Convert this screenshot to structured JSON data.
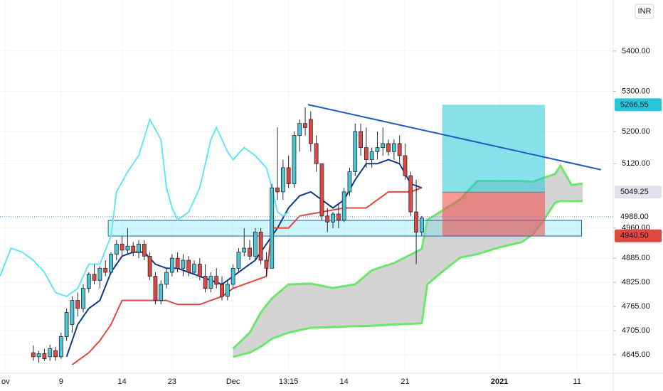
{
  "chart_data": {
    "type": "candlestick",
    "currency": "INR",
    "xlim": [
      -6,
      104.5
    ],
    "ylim": [
      4599,
      5527
    ],
    "grid": true,
    "xticks": [
      {
        "value": -5,
        "label": "ov"
      },
      {
        "value": 5,
        "label": "9"
      },
      {
        "value": 16,
        "label": "14"
      },
      {
        "value": 25,
        "label": "23"
      },
      {
        "value": 36,
        "label": "Dec"
      },
      {
        "value": 46,
        "label": "13:15"
      },
      {
        "value": 56,
        "label": "14"
      },
      {
        "value": 67,
        "label": "21"
      },
      {
        "value": 84,
        "label": "2021"
      },
      {
        "value": 98,
        "label": "11"
      }
    ],
    "yticks": [
      {
        "value": 5400,
        "label": "5400.00"
      },
      {
        "value": 5300,
        "label": "5300.00"
      },
      {
        "value": 5200,
        "label": "5200.00"
      },
      {
        "value": 5120,
        "label": "5120.00"
      },
      {
        "value": 4960,
        "label": "4960.00"
      },
      {
        "value": 4885,
        "label": "4885.00"
      },
      {
        "value": 4825,
        "label": "4825.00"
      },
      {
        "value": 4765,
        "label": "4765.00"
      },
      {
        "value": 4705,
        "label": "4705.00"
      },
      {
        "value": 4645,
        "label": "4645.00"
      }
    ],
    "up_color": "#4fc3d0",
    "down_color": "#e2473f",
    "x": [
      0,
      1,
      2,
      3,
      4,
      5,
      6,
      7,
      8,
      9,
      10,
      11,
      12,
      13,
      14,
      15,
      16,
      17,
      18,
      19,
      20,
      21,
      22,
      23,
      24,
      25,
      26,
      27,
      28,
      29,
      30,
      31,
      32,
      33,
      34,
      35,
      36,
      37,
      38,
      39,
      40,
      41,
      42,
      43,
      44,
      45,
      46,
      47,
      48,
      49,
      50,
      51,
      52,
      53,
      54,
      55,
      56,
      57,
      58,
      59,
      60,
      61,
      62,
      63,
      64,
      65,
      66,
      67,
      68,
      69,
      70
    ],
    "candles": [
      [
        4650,
        4668,
        4630,
        4640
      ],
      [
        4640,
        4655,
        4625,
        4648
      ],
      [
        4648,
        4660,
        4630,
        4635
      ],
      [
        4640,
        4670,
        4630,
        4660
      ],
      [
        4655,
        4665,
        4630,
        4640
      ],
      [
        4640,
        4700,
        4635,
        4690
      ],
      [
        4690,
        4760,
        4680,
        4750
      ],
      [
        4720,
        4790,
        4700,
        4780
      ],
      [
        4780,
        4800,
        4740,
        4760
      ],
      [
        4760,
        4820,
        4750,
        4810
      ],
      [
        4810,
        4850,
        4800,
        4845
      ],
      [
        4845,
        4870,
        4820,
        4830
      ],
      [
        4830,
        4865,
        4810,
        4860
      ],
      [
        4860,
        4880,
        4840,
        4850
      ],
      [
        4850,
        4900,
        4845,
        4895
      ],
      [
        4895,
        4930,
        4880,
        4920
      ],
      [
        4920,
        4940,
        4890,
        4905
      ],
      [
        4905,
        4960,
        4895,
        4915
      ],
      [
        4915,
        4925,
        4890,
        4900
      ],
      [
        4900,
        4930,
        4885,
        4920
      ],
      [
        4920,
        4930,
        4880,
        4890
      ],
      [
        4890,
        4900,
        4830,
        4840
      ],
      [
        4840,
        4850,
        4770,
        4780
      ],
      [
        4780,
        4830,
        4770,
        4820
      ],
      [
        4820,
        4860,
        4810,
        4850
      ],
      [
        4850,
        4895,
        4840,
        4885
      ],
      [
        4885,
        4900,
        4850,
        4860
      ],
      [
        4860,
        4895,
        4840,
        4880
      ],
      [
        4880,
        4890,
        4840,
        4850
      ],
      [
        4850,
        4880,
        4845,
        4870
      ],
      [
        4870,
        4885,
        4830,
        4840
      ],
      [
        4840,
        4870,
        4800,
        4810
      ],
      [
        4810,
        4850,
        4800,
        4840
      ],
      [
        4840,
        4860,
        4810,
        4820
      ],
      [
        4820,
        4840,
        4780,
        4790
      ],
      [
        4790,
        4830,
        4780,
        4820
      ],
      [
        4820,
        4870,
        4810,
        4860
      ],
      [
        4860,
        4910,
        4850,
        4900
      ],
      [
        4900,
        4960,
        4890,
        4910
      ],
      [
        4910,
        4930,
        4880,
        4890
      ],
      [
        4890,
        4960,
        4880,
        4950
      ],
      [
        4950,
        4960,
        4870,
        4880
      ],
      [
        4880,
        4900,
        4840,
        4860
      ],
      [
        4860,
        5070,
        4860,
        5060
      ],
      [
        5060,
        5210,
        5030,
        5050
      ],
      [
        5050,
        5130,
        5030,
        5110
      ],
      [
        5110,
        5140,
        5060,
        5070
      ],
      [
        5070,
        5200,
        5060,
        5190
      ],
      [
        5190,
        5230,
        5150,
        5220
      ],
      [
        5220,
        5260,
        5190,
        5210
      ],
      [
        5230,
        5250,
        5150,
        5170
      ],
      [
        5170,
        5190,
        5100,
        5120
      ],
      [
        5120,
        5120,
        4980,
        4990
      ],
      [
        4990,
        5010,
        4950,
        4975
      ],
      [
        4975,
        5000,
        4960,
        4995
      ],
      [
        4995,
        5020,
        4960,
        4980
      ],
      [
        4980,
        5060,
        4975,
        5050
      ],
      [
        5050,
        5110,
        5040,
        5100
      ],
      [
        5100,
        5220,
        5090,
        5200
      ],
      [
        5200,
        5220,
        5140,
        5160
      ],
      [
        5160,
        5210,
        5110,
        5130
      ],
      [
        5130,
        5160,
        5110,
        5150
      ],
      [
        5150,
        5200,
        5130,
        5160
      ],
      [
        5160,
        5210,
        5140,
        5170
      ],
      [
        5170,
        5180,
        5140,
        5150
      ],
      [
        5150,
        5180,
        5130,
        5170
      ],
      [
        5170,
        5190,
        5120,
        5140
      ],
      [
        5140,
        5170,
        5080,
        5090
      ],
      [
        5090,
        5100,
        4990,
        5000
      ],
      [
        5000,
        5080,
        4870,
        4950
      ],
      [
        4950,
        4990,
        4940,
        4985
      ]
    ],
    "lines": [
      {
        "color": "#0d3a8c",
        "x": [
          6,
          8,
          10,
          12,
          14,
          16,
          18,
          20,
          22,
          24,
          26,
          28,
          30,
          32,
          34,
          36,
          38,
          40,
          42,
          44,
          46,
          48,
          50,
          52,
          54,
          56,
          58,
          60,
          62,
          64,
          66,
          68,
          70
        ],
        "values": [
          4640,
          4720,
          4760,
          4780,
          4850,
          4890,
          4900,
          4900,
          4870,
          4860,
          4860,
          4850,
          4840,
          4830,
          4820,
          4840,
          4860,
          4880,
          4920,
          4960,
          5010,
          5040,
          5050,
          5030,
          5010,
          5030,
          5080,
          5120,
          5120,
          5130,
          5120,
          5070,
          5060
        ]
      },
      {
        "color": "#e2473f",
        "x": [
          7,
          10,
          12,
          14,
          16,
          18,
          20,
          24,
          26,
          30,
          32,
          34,
          36,
          40,
          42,
          43,
          46,
          48,
          52,
          56,
          60,
          64,
          66,
          68,
          70
        ],
        "values": [
          4620,
          4650,
          4680,
          4720,
          4780,
          4780,
          4780,
          4780,
          4770,
          4770,
          4780,
          4790,
          4810,
          4830,
          4840,
          4960,
          4960,
          4990,
          5000,
          5010,
          5010,
          5050,
          5050,
          5050,
          5060
        ]
      },
      {
        "color": "#62e6f7",
        "x": [
          -6,
          -4,
          -2,
          0,
          2,
          4,
          6,
          8,
          10,
          12,
          14,
          15,
          17,
          19,
          21,
          23,
          24,
          25,
          26,
          28,
          30,
          32,
          33,
          35,
          36,
          38,
          40,
          42,
          43,
          44,
          45,
          46
        ],
        "values": [
          4840,
          4910,
          4900,
          4880,
          4850,
          4800,
          4790,
          4810,
          4870,
          4870,
          4940,
          5050,
          5100,
          5140,
          5230,
          5180,
          5060,
          5010,
          4980,
          5000,
          5060,
          5180,
          5210,
          5150,
          5130,
          5160,
          5140,
          5110,
          5060,
          5000,
          4990,
          5000
        ]
      }
    ],
    "cloud": {
      "color": "#6be86b",
      "fill": "#d4d4d4",
      "x": [
        36,
        39,
        41,
        43,
        46,
        50,
        54,
        58,
        61,
        65,
        70,
        71,
        74,
        77,
        80,
        84,
        88,
        90,
        92,
        94,
        95,
        97,
        99
      ],
      "upper": [
        4660,
        4700,
        4750,
        4785,
        4820,
        4822,
        4811,
        4820,
        4855,
        4873,
        4908,
        4980,
        5006,
        5032,
        5077,
        5077,
        5077,
        5075,
        5085,
        5094,
        5115,
        5067,
        5071
      ],
      "lower": [
        4640,
        4650,
        4665,
        4685,
        4700,
        4712,
        4714,
        4716,
        4717,
        4720,
        4723,
        4820,
        4855,
        4887,
        4895,
        4912,
        4925,
        4944,
        4980,
        5023,
        5027,
        5027,
        5027
      ]
    },
    "trendline": {
      "color": "#1f5bc4",
      "x": [
        49.5,
        102.3
      ],
      "values": [
        5267,
        5105
      ]
    },
    "zone": {
      "x": [
        13.5,
        98.8
      ],
      "values": [
        4979,
        4940
      ]
    },
    "position": {
      "x": [
        73.7,
        92.2
      ],
      "target": {
        "value": 5266.55,
        "label": "5266.55"
      },
      "entry": {
        "value": 5049.25,
        "label": "5049.25"
      },
      "stop": {
        "value": 4940.5,
        "label": "4940.50"
      }
    },
    "last_price": {
      "value": 4988,
      "label": "4988.00"
    }
  }
}
